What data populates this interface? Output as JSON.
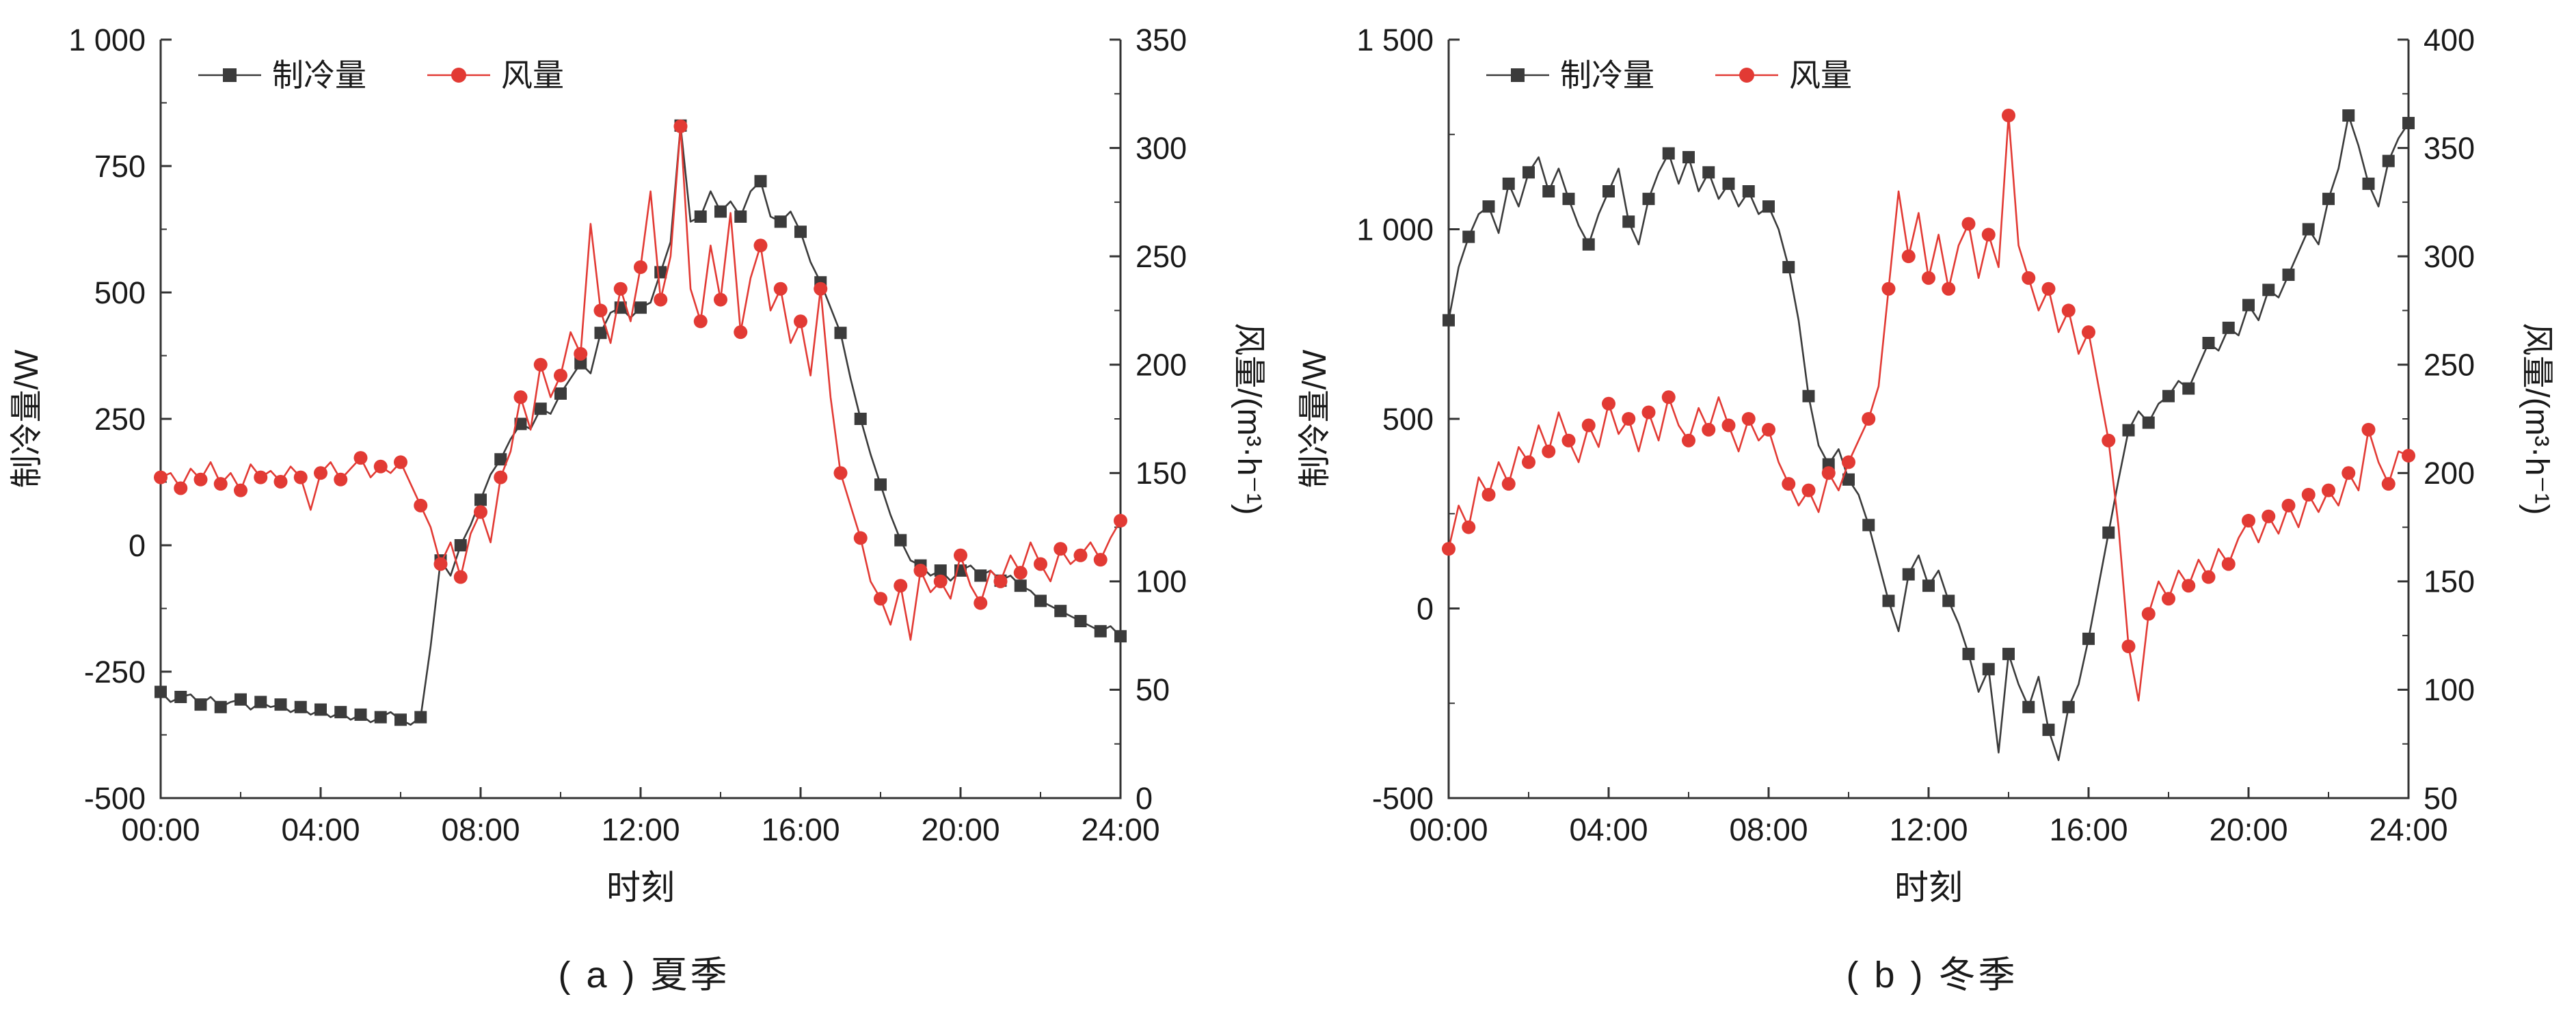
{
  "chart_data": [
    {
      "type": "line",
      "caption": "( a ) 夏季",
      "x_label": "时刻",
      "x_range": [
        0,
        24
      ],
      "x_ticks": [
        0,
        4,
        8,
        12,
        16,
        20,
        24
      ],
      "x_tick_labels": [
        "00:00",
        "04:00",
        "08:00",
        "12:00",
        "16:00",
        "20:00",
        "24:00"
      ],
      "x_minor_ticks": [
        2,
        6,
        10,
        14,
        18,
        22
      ],
      "left_axis": {
        "label": "制冷量/W",
        "range": [
          -500,
          1000
        ],
        "ticks": [
          -500,
          -250,
          0,
          250,
          500,
          750,
          1000
        ],
        "tick_labels": [
          "-500",
          "-250",
          "0",
          "250",
          "500",
          "750",
          "1 000"
        ]
      },
      "right_axis": {
        "label": "风量/(m³·h⁻¹)",
        "range": [
          0,
          350
        ],
        "ticks": [
          0,
          50,
          100,
          150,
          200,
          250,
          300,
          350
        ],
        "tick_labels": [
          "0",
          "50",
          "100",
          "150",
          "200",
          "250",
          "300",
          "350"
        ]
      },
      "legend_position": "top-left",
      "x": [
        0,
        0.25,
        0.5,
        0.75,
        1,
        1.25,
        1.5,
        1.75,
        2,
        2.25,
        2.5,
        2.75,
        3,
        3.25,
        3.5,
        3.75,
        4,
        4.25,
        4.5,
        4.75,
        5,
        5.25,
        5.5,
        5.75,
        6,
        6.25,
        6.5,
        6.75,
        7,
        7.25,
        7.5,
        7.75,
        8,
        8.25,
        8.5,
        8.75,
        9,
        9.25,
        9.5,
        9.75,
        10,
        10.25,
        10.5,
        10.75,
        11,
        11.25,
        11.5,
        11.75,
        12,
        12.25,
        12.5,
        12.75,
        13,
        13.25,
        13.5,
        13.75,
        14,
        14.25,
        14.5,
        14.75,
        15,
        15.25,
        15.5,
        15.75,
        16,
        16.25,
        16.5,
        16.75,
        17,
        17.25,
        17.5,
        17.75,
        18,
        18.25,
        18.5,
        18.75,
        19,
        19.25,
        19.5,
        19.75,
        20,
        20.25,
        20.5,
        20.75,
        21,
        21.25,
        21.5,
        21.75,
        22,
        22.25,
        22.5,
        22.75,
        23,
        23.25,
        23.5,
        23.75,
        24
      ],
      "series": [
        {
          "name": "制冷量",
          "axis": "left",
          "color": "#3b3b3b",
          "marker": "square",
          "values": [
            -290,
            -310,
            -300,
            -295,
            -315,
            -300,
            -320,
            -310,
            -305,
            -325,
            -310,
            -320,
            -315,
            -330,
            -320,
            -335,
            -325,
            -340,
            -330,
            -345,
            -335,
            -350,
            -340,
            -330,
            -345,
            -355,
            -340,
            -200,
            -30,
            -60,
            0,
            40,
            90,
            140,
            170,
            210,
            240,
            230,
            270,
            260,
            300,
            330,
            360,
            340,
            420,
            460,
            470,
            450,
            470,
            480,
            540,
            600,
            830,
            640,
            650,
            700,
            660,
            680,
            650,
            700,
            720,
            650,
            640,
            660,
            620,
            560,
            520,
            470,
            420,
            330,
            250,
            180,
            120,
            60,
            10,
            -30,
            -40,
            -60,
            -50,
            -70,
            -50,
            -40,
            -60,
            -50,
            -70,
            -60,
            -80,
            -90,
            -110,
            -120,
            -130,
            -140,
            -150,
            -160,
            -170,
            -160,
            -180
          ]
        },
        {
          "name": "风量",
          "axis": "right",
          "color": "#e23a34",
          "marker": "circle",
          "values": [
            148,
            150,
            143,
            152,
            147,
            155,
            145,
            150,
            142,
            154,
            148,
            151,
            146,
            153,
            148,
            133,
            150,
            155,
            147,
            152,
            157,
            148,
            153,
            150,
            155,
            145,
            135,
            125,
            108,
            118,
            102,
            122,
            132,
            118,
            148,
            160,
            185,
            170,
            200,
            185,
            195,
            215,
            205,
            265,
            225,
            210,
            235,
            220,
            245,
            280,
            230,
            250,
            310,
            235,
            220,
            255,
            230,
            270,
            215,
            240,
            255,
            225,
            235,
            210,
            220,
            195,
            235,
            185,
            150,
            135,
            120,
            100,
            92,
            80,
            98,
            73,
            105,
            95,
            100,
            92,
            112,
            98,
            90,
            105,
            100,
            112,
            104,
            118,
            108,
            100,
            115,
            108,
            112,
            118,
            110,
            120,
            128
          ]
        }
      ]
    },
    {
      "type": "line",
      "caption": "( b ) 冬季",
      "x_label": "时刻",
      "x_range": [
        0,
        24
      ],
      "x_ticks": [
        0,
        4,
        8,
        12,
        16,
        20,
        24
      ],
      "x_tick_labels": [
        "00:00",
        "04:00",
        "08:00",
        "12:00",
        "16:00",
        "20:00",
        "24:00"
      ],
      "x_minor_ticks": [
        2,
        6,
        10,
        14,
        18,
        22
      ],
      "left_axis": {
        "label": "制冷量/W",
        "range": [
          -500,
          1500
        ],
        "ticks": [
          -500,
          0,
          500,
          1000,
          1500
        ],
        "tick_labels": [
          "-500",
          "0",
          "500",
          "1 000",
          "1 500"
        ]
      },
      "right_axis": {
        "label": "风量/(m³·h⁻¹)",
        "range": [
          50,
          400
        ],
        "ticks": [
          50,
          100,
          150,
          200,
          250,
          300,
          350,
          400
        ],
        "tick_labels": [
          "50",
          "100",
          "150",
          "200",
          "250",
          "300",
          "350",
          "400"
        ]
      },
      "legend_position": "top-left",
      "x": [
        0,
        0.25,
        0.5,
        0.75,
        1,
        1.25,
        1.5,
        1.75,
        2,
        2.25,
        2.5,
        2.75,
        3,
        3.25,
        3.5,
        3.75,
        4,
        4.25,
        4.5,
        4.75,
        5,
        5.25,
        5.5,
        5.75,
        6,
        6.25,
        6.5,
        6.75,
        7,
        7.25,
        7.5,
        7.75,
        8,
        8.25,
        8.5,
        8.75,
        9,
        9.25,
        9.5,
        9.75,
        10,
        10.25,
        10.5,
        10.75,
        11,
        11.25,
        11.5,
        11.75,
        12,
        12.25,
        12.5,
        12.75,
        13,
        13.25,
        13.5,
        13.75,
        14,
        14.25,
        14.5,
        14.75,
        15,
        15.25,
        15.5,
        15.75,
        16,
        16.25,
        16.5,
        16.75,
        17,
        17.25,
        17.5,
        17.75,
        18,
        18.25,
        18.5,
        18.75,
        19,
        19.25,
        19.5,
        19.75,
        20,
        20.25,
        20.5,
        20.75,
        21,
        21.25,
        21.5,
        21.75,
        22,
        22.25,
        22.5,
        22.75,
        23,
        23.25,
        23.5,
        23.75,
        24
      ],
      "series": [
        {
          "name": "制冷量",
          "axis": "left",
          "color": "#3b3b3b",
          "marker": "square",
          "values": [
            760,
            900,
            980,
            1040,
            1060,
            990,
            1120,
            1060,
            1150,
            1190,
            1100,
            1160,
            1080,
            1010,
            960,
            1040,
            1100,
            1160,
            1020,
            960,
            1080,
            1150,
            1200,
            1120,
            1190,
            1100,
            1150,
            1080,
            1120,
            1060,
            1100,
            1040,
            1060,
            1000,
            900,
            760,
            560,
            430,
            380,
            420,
            340,
            300,
            220,
            120,
            20,
            -60,
            90,
            140,
            60,
            100,
            20,
            -40,
            -120,
            -220,
            -160,
            -380,
            -120,
            -200,
            -260,
            -180,
            -320,
            -400,
            -260,
            -200,
            -80,
            60,
            200,
            340,
            470,
            520,
            490,
            540,
            560,
            600,
            580,
            640,
            700,
            680,
            740,
            720,
            800,
            760,
            840,
            820,
            880,
            940,
            1000,
            960,
            1080,
            1160,
            1300,
            1220,
            1120,
            1060,
            1180,
            1240,
            1280
          ]
        },
        {
          "name": "风量",
          "axis": "right",
          "color": "#e23a34",
          "marker": "circle",
          "values": [
            165,
            185,
            175,
            198,
            190,
            205,
            195,
            212,
            205,
            222,
            210,
            228,
            215,
            205,
            222,
            212,
            232,
            218,
            225,
            210,
            228,
            215,
            235,
            222,
            215,
            230,
            220,
            235,
            222,
            210,
            225,
            215,
            220,
            205,
            195,
            185,
            192,
            182,
            200,
            192,
            205,
            215,
            225,
            240,
            285,
            330,
            300,
            320,
            290,
            310,
            285,
            305,
            315,
            290,
            310,
            295,
            365,
            305,
            290,
            275,
            285,
            265,
            275,
            255,
            265,
            240,
            215,
            175,
            120,
            95,
            135,
            150,
            142,
            155,
            148,
            160,
            152,
            165,
            158,
            170,
            178,
            168,
            180,
            172,
            185,
            175,
            190,
            182,
            192,
            185,
            200,
            192,
            220,
            205,
            195,
            210,
            208
          ]
        }
      ]
    }
  ]
}
